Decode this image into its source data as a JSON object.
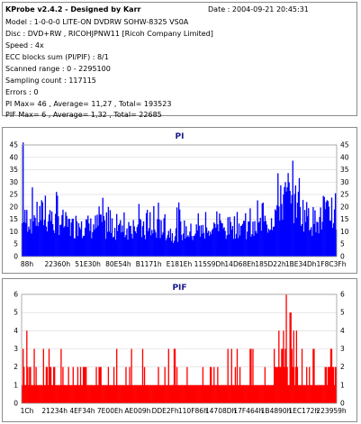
{
  "header": {
    "title": "KProbe v2.4.2 - Designed by Karr",
    "date": "Date : 2004-09-21 20:45:31",
    "lines": [
      "Model : 1-0-0-0 LITE-ON DVDRW SOHW-8325  VS0A",
      "Disc : DVD+RW , RICOHJPNW11 [Ricoh Company Limited]",
      "Speed : 4x",
      "ECC blocks sum (PI/PIF) : 8/1",
      "Scanned range : 0 - 2295100",
      "Sampling count : 117115",
      "Errors : 0",
      "PI Max= 46 , Average= 11,27 , Total= 193523",
      "PIF Max= 6 , Average= 1,32 , Total= 22685"
    ]
  },
  "chart_data": [
    {
      "type": "area",
      "title": "PI",
      "color": "#0000ff",
      "ylim": [
        0,
        45
      ],
      "yticks": [
        0,
        5,
        10,
        15,
        20,
        25,
        30,
        35,
        40,
        45
      ],
      "xticks": [
        "88h",
        "22360h",
        "51E30h",
        "80E54h",
        "B1171h",
        "E181Eh",
        "115S9Dh",
        "14D68Eh",
        "185D22h",
        "1BE34Dh",
        "1F8C3Fh"
      ],
      "xlim": [
        0,
        100
      ],
      "x": [
        0,
        2,
        4,
        6,
        8,
        10,
        12,
        14,
        16,
        18,
        20,
        22,
        24,
        26,
        28,
        30,
        32,
        34,
        36,
        38,
        40,
        42,
        44,
        46,
        48,
        50,
        52,
        54,
        56,
        58,
        60,
        62,
        64,
        66,
        68,
        70,
        72,
        74,
        76,
        78,
        80,
        82,
        84,
        86,
        88,
        90,
        92,
        94,
        96,
        98,
        100
      ],
      "values": [
        12,
        15,
        14,
        16,
        15,
        13,
        14,
        12,
        11,
        13,
        12,
        11,
        12,
        11,
        10,
        11,
        10,
        11,
        12,
        10,
        9,
        10,
        11,
        10,
        9,
        10,
        10,
        9,
        10,
        9,
        10,
        11,
        10,
        11,
        12,
        12,
        11,
        10,
        12,
        13,
        16,
        20,
        22,
        21,
        19,
        16,
        14,
        13,
        15,
        16,
        15
      ],
      "peaks": [
        46,
        29,
        28,
        28,
        30,
        27,
        26,
        27,
        25,
        24,
        26,
        23,
        24,
        25,
        22,
        23,
        24,
        22,
        23,
        21,
        23,
        24,
        22,
        21,
        20,
        22,
        21,
        20,
        21,
        22,
        21,
        20,
        21,
        22,
        20,
        21,
        20,
        22,
        24,
        27,
        31,
        36,
        38,
        39,
        35,
        30,
        26,
        24,
        28,
        30,
        29
      ]
    },
    {
      "type": "area",
      "title": "PIF",
      "color": "#ff0000",
      "ylim": [
        0,
        6
      ],
      "yticks": [
        0,
        1,
        2,
        3,
        4,
        5,
        6
      ],
      "xticks": [
        "1Ch",
        "21234h",
        "4EF34h",
        "7E00Eh",
        "AE009h",
        "DDE2Fh",
        "110F86h",
        "14708Dh",
        "17F464h",
        "1B4890h",
        "1EC172h",
        "223959h"
      ],
      "xlim": [
        0,
        100
      ],
      "x": [
        0,
        2,
        4,
        6,
        8,
        10,
        12,
        14,
        16,
        18,
        20,
        22,
        24,
        26,
        28,
        30,
        32,
        34,
        36,
        38,
        40,
        42,
        44,
        46,
        48,
        50,
        52,
        54,
        56,
        58,
        60,
        62,
        64,
        66,
        68,
        70,
        72,
        74,
        76,
        78,
        80,
        82,
        84,
        86,
        88,
        90,
        92,
        94,
        96,
        98,
        100
      ],
      "values": [
        1,
        2,
        1,
        1,
        2,
        1,
        1,
        1,
        1,
        1,
        2,
        1,
        1,
        1,
        1,
        1,
        1,
        1,
        1,
        1,
        1,
        1,
        1,
        1,
        1,
        1,
        1,
        1,
        1,
        1,
        1,
        1,
        1,
        1,
        1,
        1,
        1,
        1,
        1,
        1,
        1,
        2,
        2,
        2,
        1,
        1,
        1,
        1,
        1,
        2,
        1
      ],
      "peaks": [
        3,
        4,
        3,
        3,
        4,
        3,
        3,
        3,
        2,
        3,
        4,
        3,
        3,
        3,
        3,
        3,
        2,
        3,
        3,
        3,
        3,
        3,
        3,
        3,
        3,
        2,
        3,
        3,
        3,
        2,
        3,
        3,
        2,
        3,
        3,
        3,
        3,
        3,
        2,
        3,
        4,
        6,
        6,
        5,
        4,
        3,
        3,
        3,
        4,
        3,
        3
      ]
    }
  ]
}
